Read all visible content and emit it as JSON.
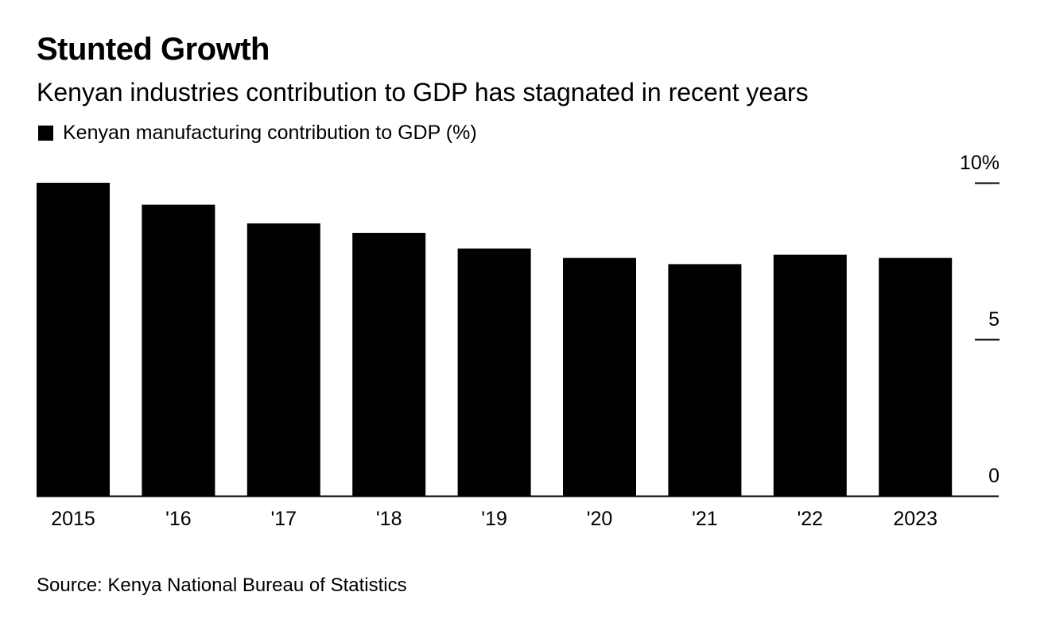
{
  "header": {
    "title": "Stunted Growth",
    "subtitle": "Kenyan industries contribution to GDP has stagnated in recent years"
  },
  "footer": {
    "source": "Source: Kenya National Bureau of Statistics"
  },
  "colors": {
    "bar": "#000000",
    "background": "#ffffff",
    "text": "#000000"
  },
  "chart_data": {
    "type": "bar",
    "categories": [
      "2015",
      "'16",
      "'17",
      "'18",
      "'19",
      "'20",
      "'21",
      "'22",
      "2023"
    ],
    "series": [
      {
        "name": "Kenyan manufacturing contribution to GDP (%)",
        "values": [
          10.0,
          9.3,
          8.7,
          8.4,
          7.9,
          7.6,
          7.4,
          7.7,
          7.6
        ]
      }
    ],
    "yticks": [
      {
        "value": 0,
        "label": "0"
      },
      {
        "value": 5,
        "label": "5"
      },
      {
        "value": 10,
        "label": "10%"
      }
    ],
    "ylim": [
      0,
      10
    ],
    "y_axis_side": "right",
    "legend_placement": "top-left",
    "grid": false
  }
}
